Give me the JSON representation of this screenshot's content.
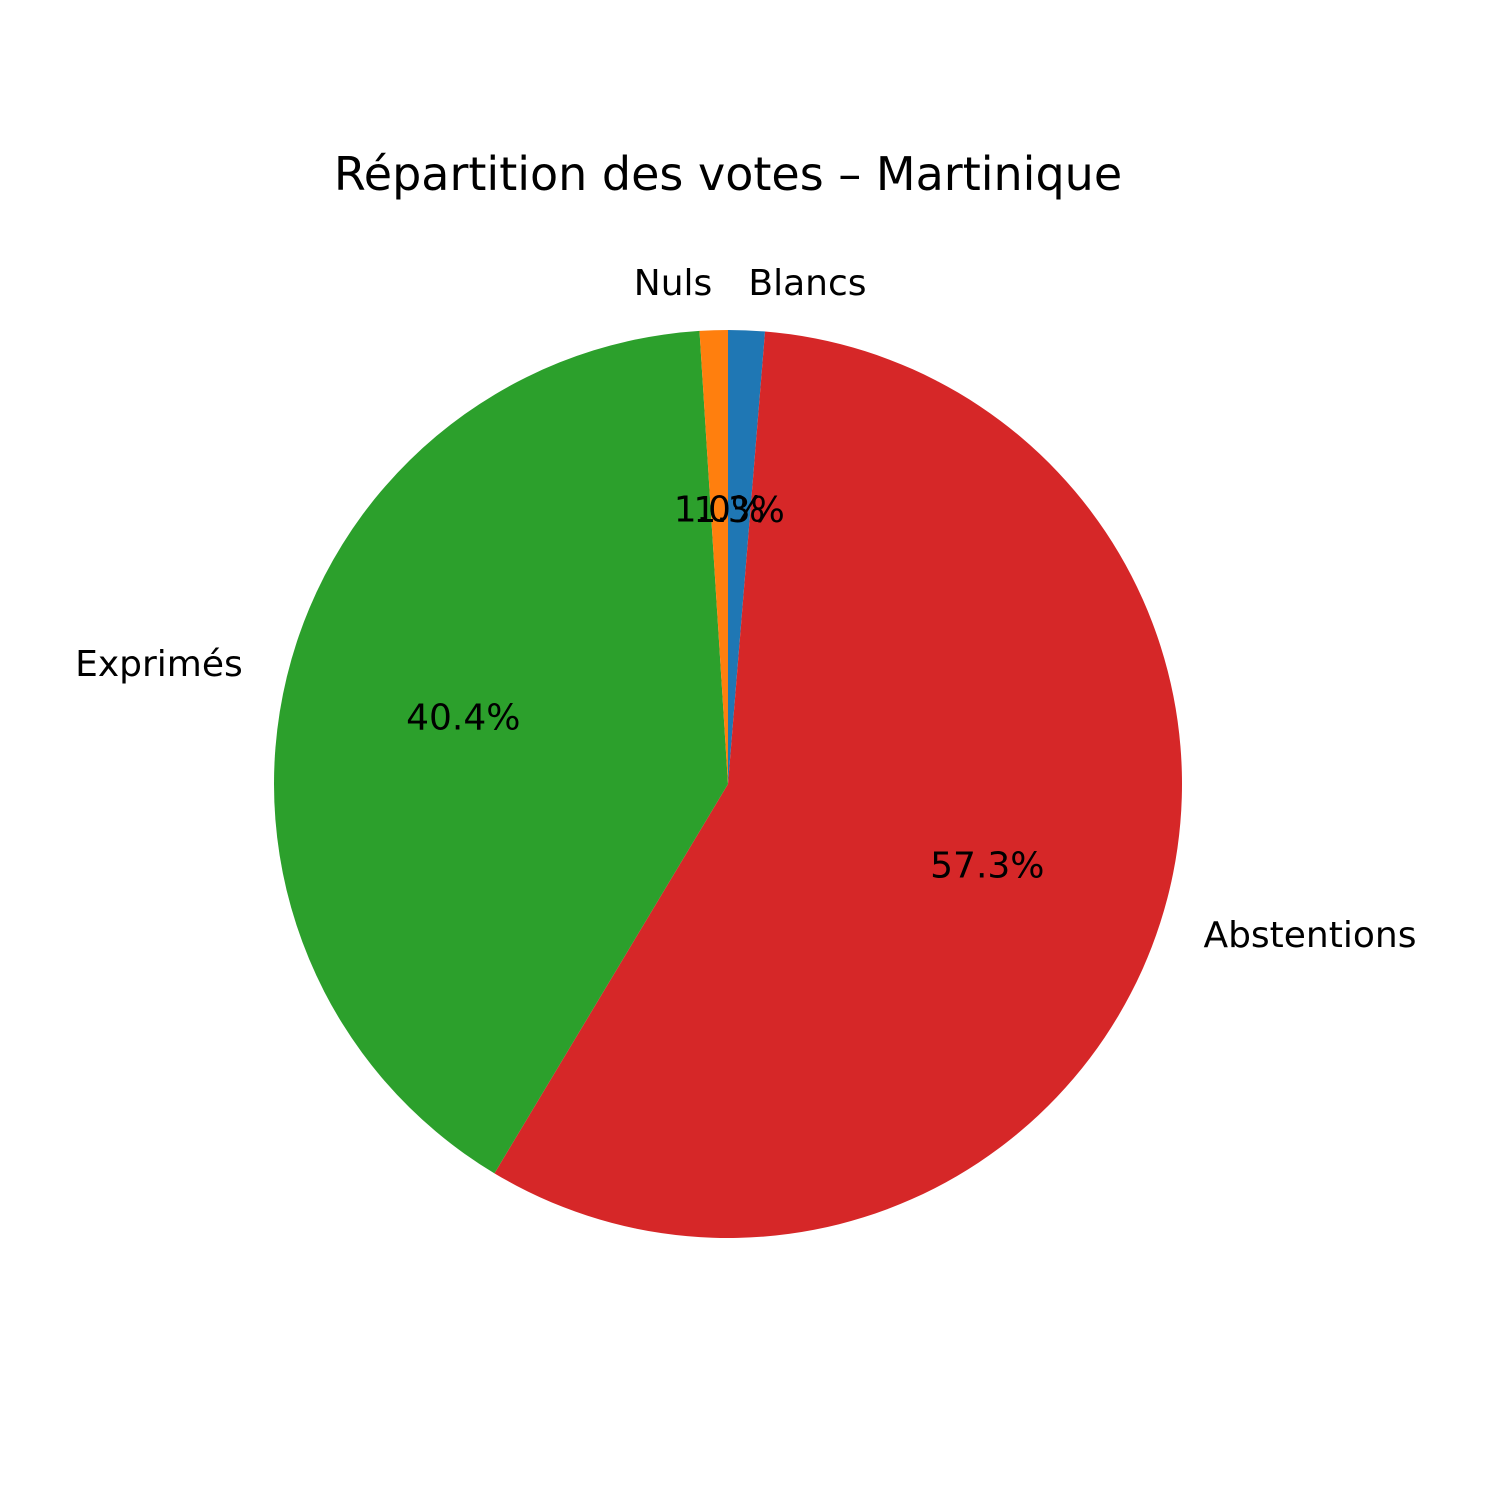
{
  "chart_data": {
    "type": "pie",
    "title": "Répartition des votes – Martinique",
    "start_angle_deg": 90,
    "direction": "clockwise",
    "slices": [
      {
        "label": "Blancs",
        "value": 1.3,
        "pct_label": "1.3%",
        "color": "#1f77b4"
      },
      {
        "label": "Abstentions",
        "value": 57.3,
        "pct_label": "57.3%",
        "color": "#d62728"
      },
      {
        "label": "Exprimés",
        "value": 40.4,
        "pct_label": "40.4%",
        "color": "#2ca02c"
      },
      {
        "label": "Nuls",
        "value": 1.0,
        "pct_label": "1.0%",
        "color": "#ff7f0e"
      }
    ]
  }
}
